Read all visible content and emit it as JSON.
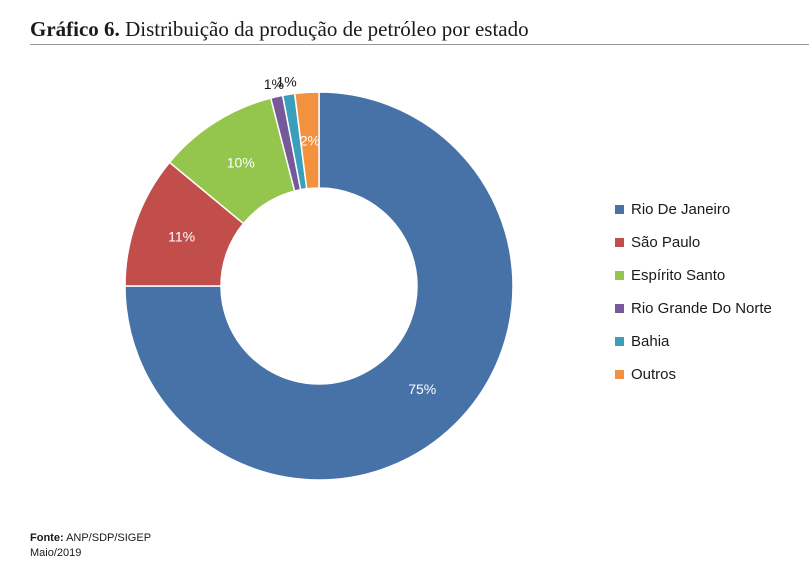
{
  "title": {
    "prefix": "Gráfico 6.",
    "text": "Distribuição da produção de petróleo por estado"
  },
  "chart_data": {
    "type": "pie",
    "variant": "donut",
    "categories": [
      "Rio De Janeiro",
      "São Paulo",
      "Espírito Santo",
      "Rio Grande Do Norte",
      "Bahia",
      "Outros"
    ],
    "values": [
      75,
      11,
      10,
      1,
      1,
      2
    ],
    "labels": [
      "75%",
      "11%",
      "10%",
      "1%",
      "1%",
      "2%"
    ],
    "colors": [
      "#4672a8",
      "#c24e4b",
      "#94c54c",
      "#75599a",
      "#3a9fba",
      "#f2913e"
    ],
    "legend": "right",
    "start_angle_deg": 0,
    "direction": "clockwise"
  },
  "source": {
    "label": "Fonte:",
    "text": "ANP/SDP/SIGEP",
    "date": "Maio/2019"
  }
}
